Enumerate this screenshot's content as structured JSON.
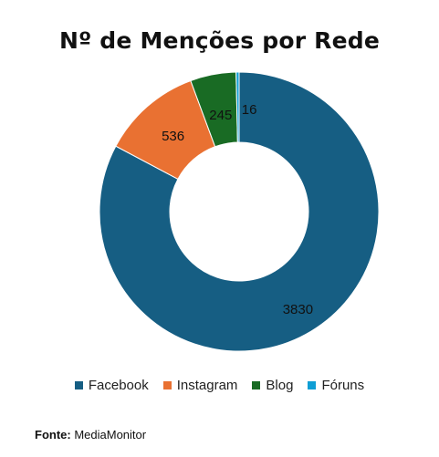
{
  "chart_data": {
    "type": "donut",
    "title": "Nº de Menções por Rede",
    "categories": [
      "Facebook",
      "Instagram",
      "Blog",
      "Fóruns"
    ],
    "values": [
      3830,
      536,
      245,
      16
    ],
    "colors": [
      "#165e83",
      "#e97132",
      "#196b24",
      "#0f9ed5"
    ],
    "data_labels": [
      "3830",
      "536",
      "245",
      "16"
    ],
    "legend_position": "bottom"
  },
  "source": {
    "label": "Fonte:",
    "text": "MediaMonitor"
  }
}
